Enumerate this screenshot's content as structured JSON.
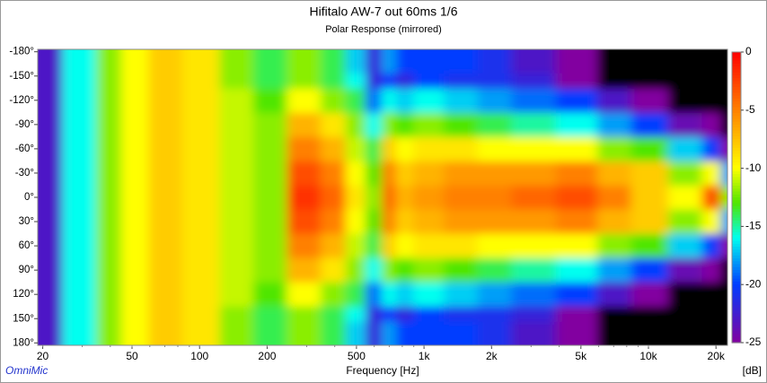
{
  "chart_data": {
    "type": "heatmap",
    "title": "Hifitalo AW-7 out 60ms 1/6",
    "subtitle": "Polar Response (mirrored)",
    "x_label": "Frequency [Hz]",
    "z_label": "[dB]",
    "brand": "OmniMic",
    "log_x": true,
    "mirrored": true,
    "x": [
      20,
      30,
      40,
      50,
      70,
      100,
      150,
      200,
      300,
      400,
      500,
      600,
      700,
      800,
      1000,
      1500,
      2000,
      3000,
      5000,
      7000,
      10000,
      15000,
      20000,
      22000
    ],
    "angles": [
      0,
      30,
      60,
      90,
      120,
      150,
      180
    ],
    "z": [
      [
        -23,
        -16,
        -12,
        -10,
        -8,
        -9,
        -11,
        -12,
        -2,
        -4,
        -9,
        -12,
        -4,
        -7,
        -6,
        -5,
        -5,
        -4,
        -3,
        -5,
        -8,
        -10,
        -3,
        -12
      ],
      [
        -23,
        -16,
        -12,
        -10,
        -8,
        -9,
        -11,
        -12,
        -3,
        -5,
        -10,
        -13,
        -5,
        -8,
        -7,
        -6,
        -6,
        -6,
        -5,
        -7,
        -8,
        -12,
        -10,
        -18
      ],
      [
        -23,
        -16,
        -12,
        -10,
        -8,
        -9,
        -11,
        -12,
        -5,
        -7,
        -11,
        -14,
        -8,
        -10,
        -9,
        -9,
        -10,
        -10,
        -10,
        -12,
        -13,
        -17,
        -20,
        -25
      ],
      [
        -23,
        -16,
        -12,
        -10,
        -8,
        -9,
        -11,
        -12,
        -7,
        -9,
        -12,
        -16,
        -12,
        -13,
        -12,
        -13,
        -14,
        -15,
        -16,
        -18,
        -20,
        -24,
        -25,
        -30
      ],
      [
        -23,
        -16,
        -12,
        -10,
        -8,
        -9,
        -11,
        -13,
        -10,
        -12,
        -14,
        -19,
        -16,
        -17,
        -16,
        -17,
        -18,
        -19,
        -20,
        -23,
        -25,
        -30,
        -30,
        -30
      ],
      [
        -23,
        -16,
        -12,
        -10,
        -8,
        -9,
        -12,
        -14,
        -12,
        -14,
        -16,
        -22,
        -20,
        -22,
        -20,
        -21,
        -21,
        -22,
        -25,
        -30,
        -30,
        -30,
        -30,
        -30
      ],
      [
        -23,
        -16,
        -12,
        -10,
        -8,
        -9,
        -12,
        -14,
        -12,
        -14,
        -17,
        -22,
        -18,
        -20,
        -20,
        -20,
        -21,
        -23,
        -25,
        -30,
        -30,
        -30,
        -30,
        -30
      ]
    ],
    "xlim": [
      19,
      22500
    ],
    "ylim": [
      -183,
      183
    ],
    "zlim": [
      -25,
      0
    ],
    "xticks": [
      20,
      50,
      100,
      200,
      500,
      {
        "value": 1000,
        "label": "1k"
      },
      {
        "value": 2000,
        "label": "2k"
      },
      {
        "value": 5000,
        "label": "5k"
      },
      {
        "value": 10000,
        "label": "10k"
      },
      {
        "value": 20000,
        "label": "20k"
      }
    ],
    "yticks": [
      {
        "value": -180,
        "label": "-180°"
      },
      {
        "value": -150,
        "label": "-150°"
      },
      {
        "value": -120,
        "label": "-120°"
      },
      {
        "value": -90,
        "label": "-90°"
      },
      {
        "value": -60,
        "label": "-60°"
      },
      {
        "value": -30,
        "label": "-30°"
      },
      {
        "value": 0,
        "label": "0°"
      },
      {
        "value": 30,
        "label": "30°"
      },
      {
        "value": 60,
        "label": "60°"
      },
      {
        "value": 90,
        "label": "90°"
      },
      {
        "value": 120,
        "label": "120°"
      },
      {
        "value": 150,
        "label": "150°"
      },
      {
        "value": 180,
        "label": "180°"
      }
    ],
    "zticks": [
      0,
      -5,
      -10,
      -15,
      -20,
      -25
    ]
  }
}
